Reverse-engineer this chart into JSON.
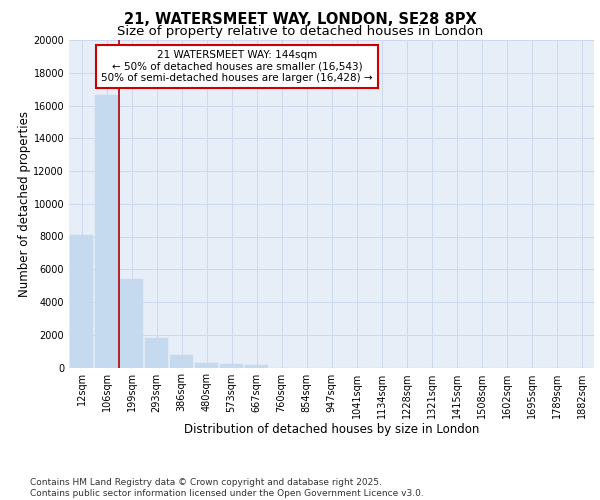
{
  "title_line1": "21, WATERSMEET WAY, LONDON, SE28 8PX",
  "title_line2": "Size of property relative to detached houses in London",
  "xlabel": "Distribution of detached houses by size in London",
  "ylabel": "Number of detached properties",
  "bar_labels": [
    "12sqm",
    "106sqm",
    "199sqm",
    "293sqm",
    "386sqm",
    "480sqm",
    "573sqm",
    "667sqm",
    "760sqm",
    "854sqm",
    "947sqm",
    "1041sqm",
    "1134sqm",
    "1228sqm",
    "1321sqm",
    "1415sqm",
    "1508sqm",
    "1602sqm",
    "1695sqm",
    "1789sqm",
    "1882sqm"
  ],
  "bar_values": [
    8100,
    16650,
    5400,
    1800,
    750,
    300,
    200,
    150,
    0,
    0,
    0,
    0,
    0,
    0,
    0,
    0,
    0,
    0,
    0,
    0,
    0
  ],
  "bar_color": "#c5d9ef",
  "bar_edge_color": "#c5d9ef",
  "vline_color": "#aa0000",
  "annotation_text": "21 WATERSMEET WAY: 144sqm\n← 50% of detached houses are smaller (16,543)\n50% of semi-detached houses are larger (16,428) →",
  "annotation_box_color": "#ffffff",
  "annotation_box_edge": "#cc0000",
  "ylim": [
    0,
    20000
  ],
  "yticks": [
    0,
    2000,
    4000,
    6000,
    8000,
    10000,
    12000,
    14000,
    16000,
    18000,
    20000
  ],
  "grid_color": "#ccd8ec",
  "background_color": "#e8eef8",
  "footer_text": "Contains HM Land Registry data © Crown copyright and database right 2025.\nContains public sector information licensed under the Open Government Licence v3.0.",
  "title_fontsize": 10.5,
  "subtitle_fontsize": 9.5,
  "axis_label_fontsize": 8.5,
  "tick_fontsize": 7,
  "annotation_fontsize": 7.5,
  "footer_fontsize": 6.5
}
